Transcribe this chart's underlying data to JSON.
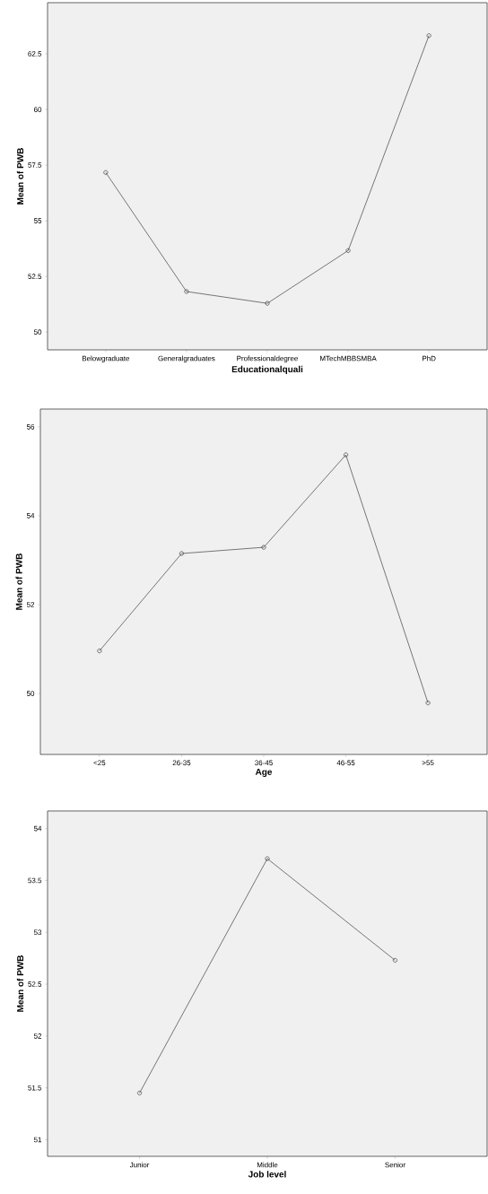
{
  "chart_data": [
    {
      "type": "line",
      "xlabel": "Educationalquali",
      "ylabel": "Mean of PWB",
      "categories": [
        "Belowgraduate",
        "Generalgraduates",
        "Professionaldegree",
        "MTechMBBSMBA",
        "PhD"
      ],
      "values": [
        57.17,
        51.82,
        51.29,
        53.66,
        63.32
      ],
      "color": "#404040",
      "marker": "circle",
      "ylim": [
        49.2,
        64.8
      ],
      "yticks": [
        50,
        52.5,
        55,
        57.5,
        60,
        62.5
      ]
    },
    {
      "type": "line",
      "xlabel": "Age",
      "ylabel": "Mean of PWB",
      "categories": [
        "<25",
        "26-35",
        "36-45",
        "46-55",
        ">55"
      ],
      "values": [
        50.96,
        53.15,
        53.29,
        55.37,
        49.79
      ],
      "color": "#404040",
      "marker": "circle",
      "ylim": [
        48.63,
        56.4
      ],
      "yticks": [
        50,
        52,
        54,
        56
      ]
    },
    {
      "type": "line",
      "xlabel": "Job level",
      "ylabel": "Mean of PWB",
      "categories": [
        "Junior",
        "Middle",
        "Senior"
      ],
      "values": [
        51.45,
        53.71,
        52.73
      ],
      "color": "#404040",
      "marker": "circle",
      "ylim": [
        50.84,
        54.17
      ],
      "yticks": [
        51,
        51.5,
        52,
        52.5,
        53,
        53.5,
        54
      ]
    }
  ]
}
